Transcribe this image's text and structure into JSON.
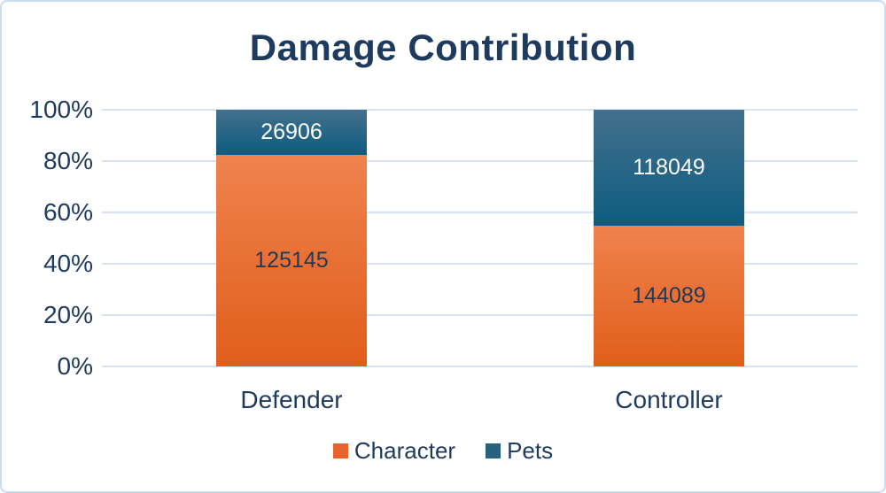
{
  "chart_data": {
    "type": "bar",
    "stacked": true,
    "normalized_to_percent": true,
    "title": "Damage Contribution",
    "categories": [
      "Defender",
      "Controller"
    ],
    "series": [
      {
        "name": "Character",
        "values": [
          125145,
          144089
        ],
        "color_top": "#F0824E",
        "color_bottom": "#E05E1A",
        "legend_color": "#E8622C",
        "label_color": "#1E3A5C"
      },
      {
        "name": "Pets",
        "values": [
          26906,
          118049
        ],
        "color_top": "#44708C",
        "color_bottom": "#0D5C80",
        "legend_color": "#26617E",
        "label_color": "#FFFFFF"
      }
    ],
    "yticks": [
      "0%",
      "20%",
      "40%",
      "60%",
      "80%",
      "100%"
    ],
    "ylim": [
      0,
      100
    ],
    "grid": true,
    "legend_position": "bottom"
  },
  "colors": {
    "title_text": "#1E3A5C",
    "axis_text": "#1E3A5C",
    "gridline": "#D6E3F4",
    "frame_border": "#C9DCF1",
    "background": "#FFFFFF"
  }
}
